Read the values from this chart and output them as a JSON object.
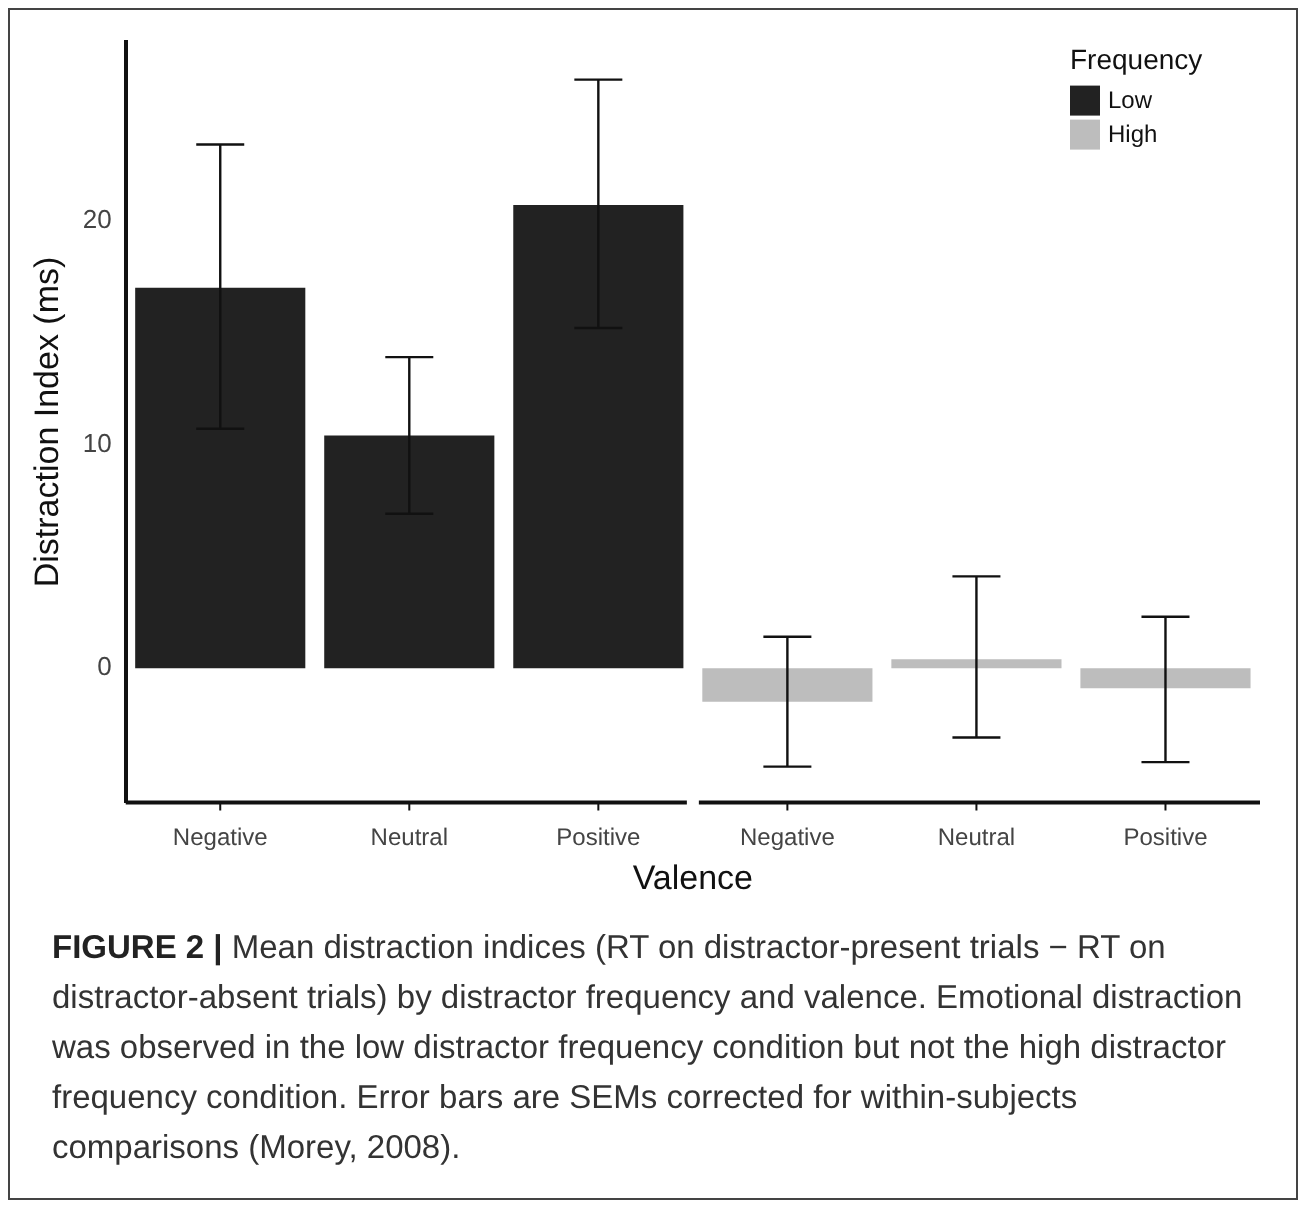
{
  "chart_data": {
    "type": "bar",
    "xlabel": "Valence",
    "ylabel": "Distraction Index (ms)",
    "legend_title": "Frequency",
    "legend": "top right",
    "categories": [
      "Negative",
      "Neutral",
      "Positive",
      "Negative",
      "Neutral",
      "Positive"
    ],
    "series": [
      {
        "name": "Low",
        "color": "#222222",
        "values": [
          17.0,
          10.4,
          20.7,
          null,
          null,
          null
        ],
        "errors": [
          [
            10.7,
            23.4
          ],
          [
            6.9,
            13.9
          ],
          [
            15.2,
            26.3
          ],
          null,
          null,
          null
        ]
      },
      {
        "name": "High",
        "color": "#bdbdbd",
        "values": [
          null,
          null,
          null,
          -1.5,
          0.4,
          -0.9
        ],
        "errors": [
          null,
          null,
          null,
          [
            -4.4,
            1.4
          ],
          [
            -3.1,
            4.1
          ],
          [
            -4.2,
            2.3
          ]
        ]
      }
    ],
    "ylim": [
      -6,
      28
    ],
    "yticks": [
      0,
      10,
      20
    ],
    "annotations": [
      "FIGURE 2 | Mean distraction indices (RT on distractor-present trials − RT on distractor-absent trials) by distractor frequency and valence. Emotional distraction was observed in the low distractor frequency condition but not the high distractor frequency condition. Error bars are SEMs corrected for within-subjects comparisons (Morey, 2008)."
    ]
  }
}
